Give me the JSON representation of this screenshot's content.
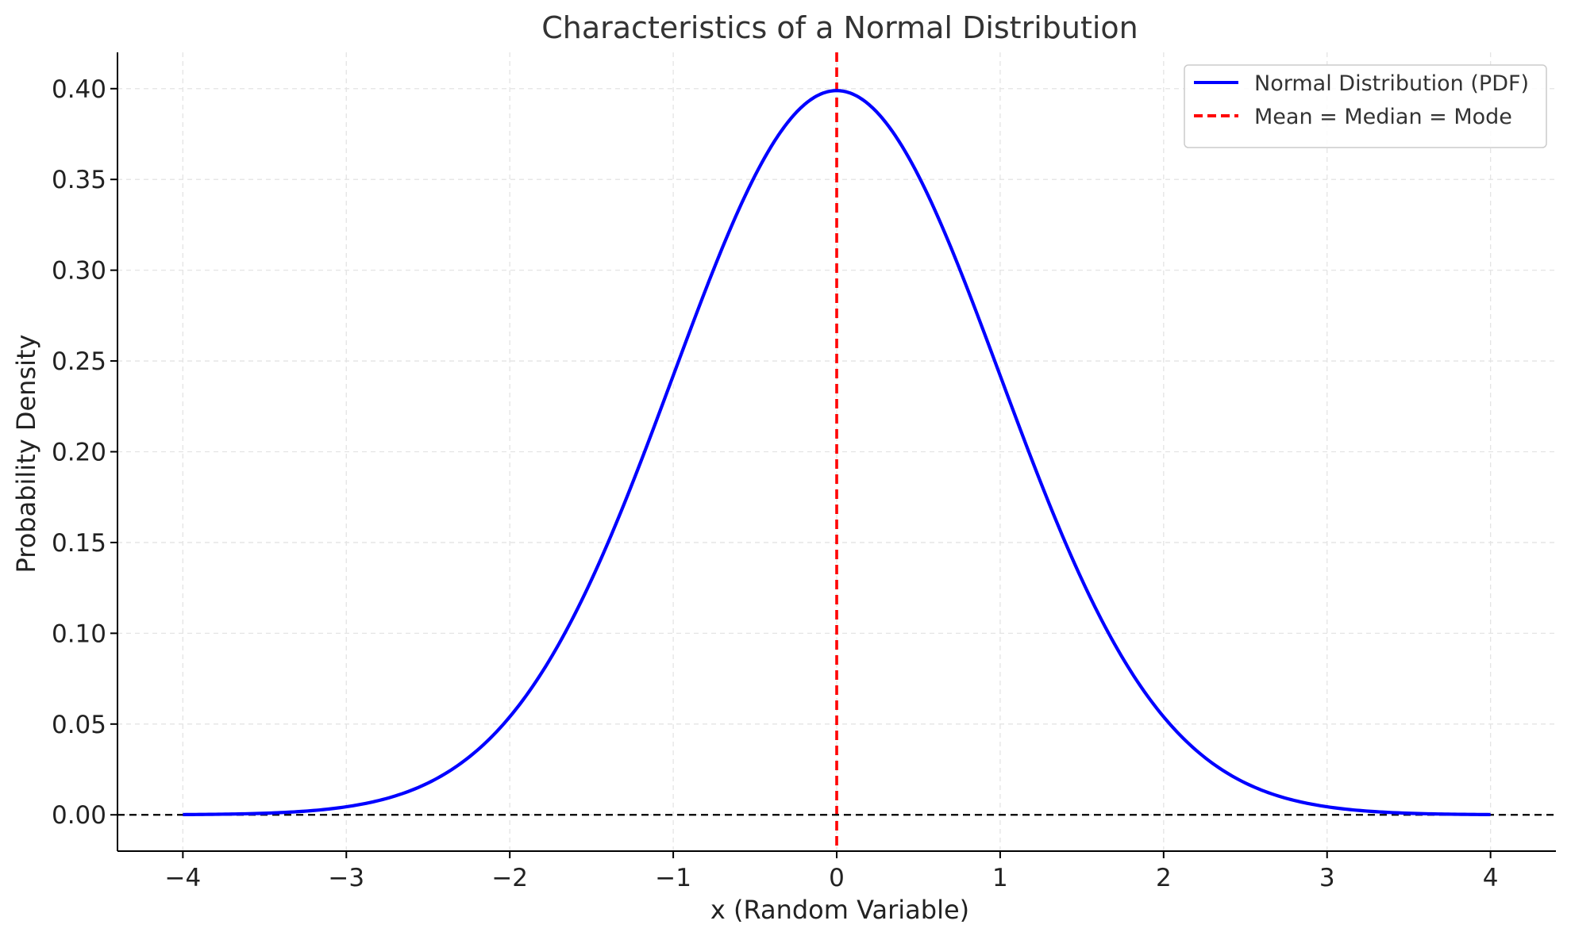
{
  "chart_data": {
    "type": "line",
    "title": "Characteristics of a Normal Distribution",
    "xlabel": "x (Random Variable)",
    "ylabel": "Probability Density",
    "xlim": [
      -4.4,
      4.4
    ],
    "ylim": [
      -0.02,
      0.42
    ],
    "x_ticks": [
      -4,
      -3,
      -2,
      -1,
      0,
      1,
      2,
      3,
      4
    ],
    "x_tick_labels": [
      "−4",
      "−3",
      "−2",
      "−1",
      "0",
      "1",
      "2",
      "3",
      "4"
    ],
    "y_ticks": [
      0.0,
      0.05,
      0.1,
      0.15,
      0.2,
      0.25,
      0.3,
      0.35,
      0.4
    ],
    "y_tick_labels": [
      "0.00",
      "0.05",
      "0.10",
      "0.15",
      "0.20",
      "0.25",
      "0.30",
      "0.35",
      "0.40"
    ],
    "grid": true,
    "legend_position": "top-right",
    "series": [
      {
        "name": "Normal Distribution (PDF)",
        "color": "#0000ff",
        "style": "solid",
        "x": [
          -4.0,
          -3.75,
          -3.5,
          -3.25,
          -3.0,
          -2.75,
          -2.5,
          -2.25,
          -2.0,
          -1.75,
          -1.5,
          -1.25,
          -1.0,
          -0.75,
          -0.5,
          -0.25,
          0.0,
          0.25,
          0.5,
          0.75,
          1.0,
          1.25,
          1.5,
          1.75,
          2.0,
          2.25,
          2.5,
          2.75,
          3.0,
          3.25,
          3.5,
          3.75,
          4.0
        ],
        "y": [
          0.0001,
          0.0004,
          0.0009,
          0.002,
          0.0044,
          0.0091,
          0.0175,
          0.0317,
          0.054,
          0.0863,
          0.1295,
          0.1826,
          0.242,
          0.3011,
          0.3521,
          0.3867,
          0.3989,
          0.3867,
          0.3521,
          0.3011,
          0.242,
          0.1826,
          0.1295,
          0.0863,
          0.054,
          0.0317,
          0.0175,
          0.0091,
          0.0044,
          0.002,
          0.0009,
          0.0004,
          0.0001
        ]
      }
    ],
    "reference_lines": [
      {
        "name": "Mean = Median = Mode",
        "orientation": "vertical",
        "x": 0,
        "color": "#ff0000",
        "style": "dashed",
        "in_legend": true
      },
      {
        "orientation": "horizontal",
        "y": 0,
        "color": "#000000",
        "style": "dashed",
        "in_legend": false
      }
    ]
  }
}
